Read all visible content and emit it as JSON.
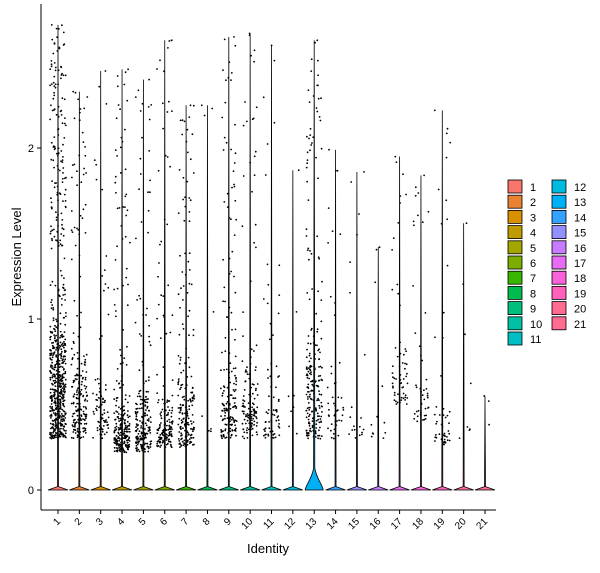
{
  "chart_data": {
    "type": "violin",
    "xlabel": "Identity",
    "ylabel": "Expression Level",
    "ylim": [
      -0.12,
      2.85
    ],
    "yticks": [
      0,
      1,
      2
    ],
    "categories": [
      "1",
      "2",
      "3",
      "4",
      "5",
      "6",
      "7",
      "8",
      "9",
      "10",
      "11",
      "12",
      "13",
      "14",
      "15",
      "16",
      "17",
      "18",
      "19",
      "20",
      "21"
    ],
    "colors": [
      "#F8766D",
      "#EA8331",
      "#D89000",
      "#C09B00",
      "#A3A500",
      "#7CAE00",
      "#39B600",
      "#00BB4E",
      "#00BF7D",
      "#00C1A3",
      "#00BFC4",
      "#00BAE0",
      "#00B0F6",
      "#35A2FF",
      "#9590FF",
      "#C77CFF",
      "#E76BF3",
      "#FA62DB",
      "#FF62BC",
      "#FF6C91",
      "#FF6C91"
    ],
    "max_values": [
      2.72,
      2.33,
      2.45,
      2.46,
      2.4,
      2.63,
      2.25,
      2.25,
      2.65,
      2.67,
      2.6,
      1.87,
      2.63,
      1.99,
      1.86,
      1.42,
      1.95,
      1.84,
      2.22,
      1.56,
      0.55
    ],
    "dense_ranges": [
      [
        0.3,
        1.4
      ],
      [
        0.3,
        1.0
      ],
      [
        0.3,
        0.8
      ],
      [
        0.22,
        0.6
      ],
      [
        0.22,
        0.7
      ],
      [
        0.25,
        0.6
      ],
      [
        0.25,
        0.9
      ],
      [
        0.3,
        0.5
      ],
      [
        0.3,
        1.0
      ],
      [
        0.3,
        0.9
      ],
      [
        0.3,
        0.8
      ],
      [
        0.3,
        0.6
      ],
      [
        0.3,
        1.1
      ],
      [
        0.3,
        0.8
      ],
      [
        0.3,
        0.6
      ],
      [
        0.3,
        0.5
      ],
      [
        0.5,
        1.0
      ],
      [
        0.4,
        0.8
      ],
      [
        0.25,
        0.6
      ],
      [
        0.3,
        0.5
      ],
      [
        0.3,
        0.5
      ]
    ],
    "point_counts": [
      650,
      200,
      80,
      260,
      200,
      170,
      200,
      8,
      170,
      130,
      70,
      8,
      220,
      45,
      20,
      12,
      60,
      45,
      50,
      8,
      3
    ],
    "zero_violin_height": [
      0.006,
      0.006,
      0.006,
      0.006,
      0.006,
      0.006,
      0.006,
      0.006,
      0.006,
      0.006,
      0.006,
      0.006,
      0.07,
      0.006,
      0.006,
      0.006,
      0.006,
      0.006,
      0.006,
      0.006,
      0.006
    ],
    "legend": {
      "position": "right",
      "columns": 2,
      "entries": [
        "1",
        "2",
        "3",
        "4",
        "5",
        "6",
        "7",
        "8",
        "9",
        "10",
        "11",
        "12",
        "13",
        "14",
        "15",
        "16",
        "17",
        "18",
        "19",
        "20",
        "21"
      ]
    },
    "grid": false
  }
}
